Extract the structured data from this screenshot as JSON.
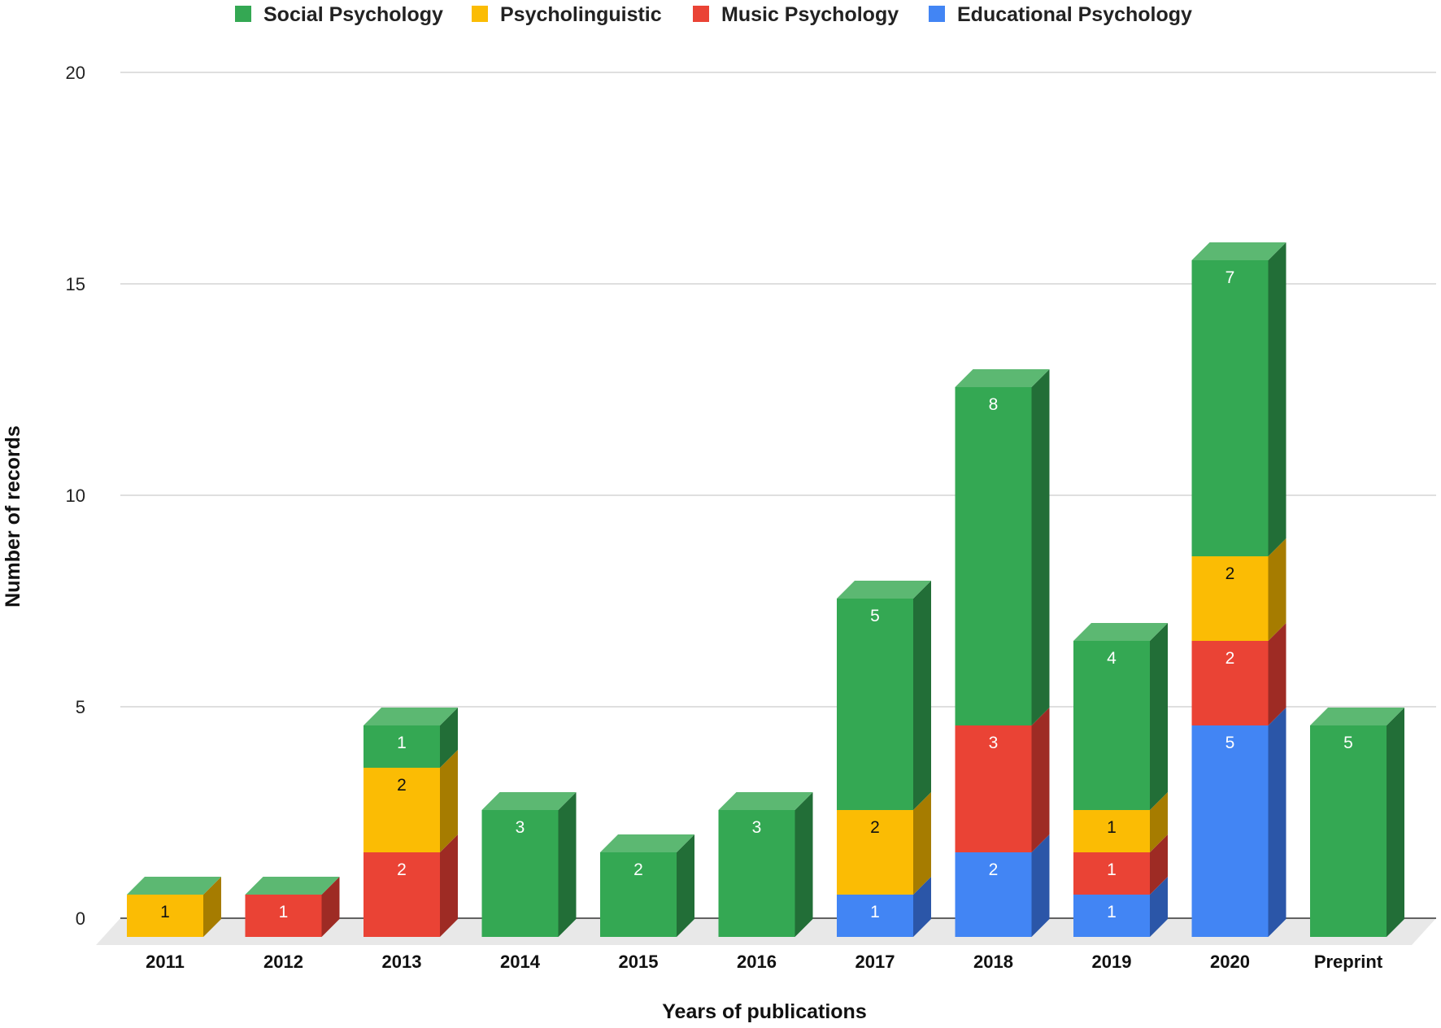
{
  "chart_data": {
    "type": "bar",
    "stacked": true,
    "three_d": true,
    "xlabel": "Years of publications",
    "ylabel": "Number of records",
    "ylim": [
      0,
      20
    ],
    "yticks": [
      0,
      5,
      10,
      15,
      20
    ],
    "categories": [
      "2011",
      "2012",
      "2013",
      "2014",
      "2015",
      "2016",
      "2017",
      "2018",
      "2019",
      "2020",
      "Preprint"
    ],
    "legend_position": "top-center",
    "series": [
      {
        "name": "Educational Psychology",
        "color": "#4285F4",
        "side_color": "#2B56A8",
        "label_color": "#ffffff",
        "values": [
          0,
          0,
          0,
          0,
          0,
          0,
          1,
          2,
          1,
          5,
          0
        ]
      },
      {
        "name": "Music Psychology",
        "color": "#EA4335",
        "side_color": "#9E2B24",
        "label_color": "#ffffff",
        "values": [
          0,
          1,
          2,
          0,
          0,
          0,
          0,
          3,
          1,
          2,
          0
        ]
      },
      {
        "name": "Psycholinguistic",
        "color": "#FBBC04",
        "side_color": "#A67C00",
        "label_color": "#111111",
        "values": [
          1,
          0,
          2,
          0,
          0,
          0,
          2,
          0,
          1,
          2,
          0
        ]
      },
      {
        "name": "Social Psychology",
        "color": "#34A853",
        "side_color": "#226E37",
        "label_color": "#ffffff",
        "values": [
          0,
          0,
          1,
          3,
          2,
          3,
          5,
          8,
          4,
          7,
          5
        ]
      }
    ],
    "legend_order": [
      "Social Psychology",
      "Psycholinguistic",
      "Music Psychology",
      "Educational Psychology"
    ],
    "top_face_color": "#5CB872",
    "floor_color": "#E8E8E8",
    "gridline_color": "#CCCCCC"
  }
}
